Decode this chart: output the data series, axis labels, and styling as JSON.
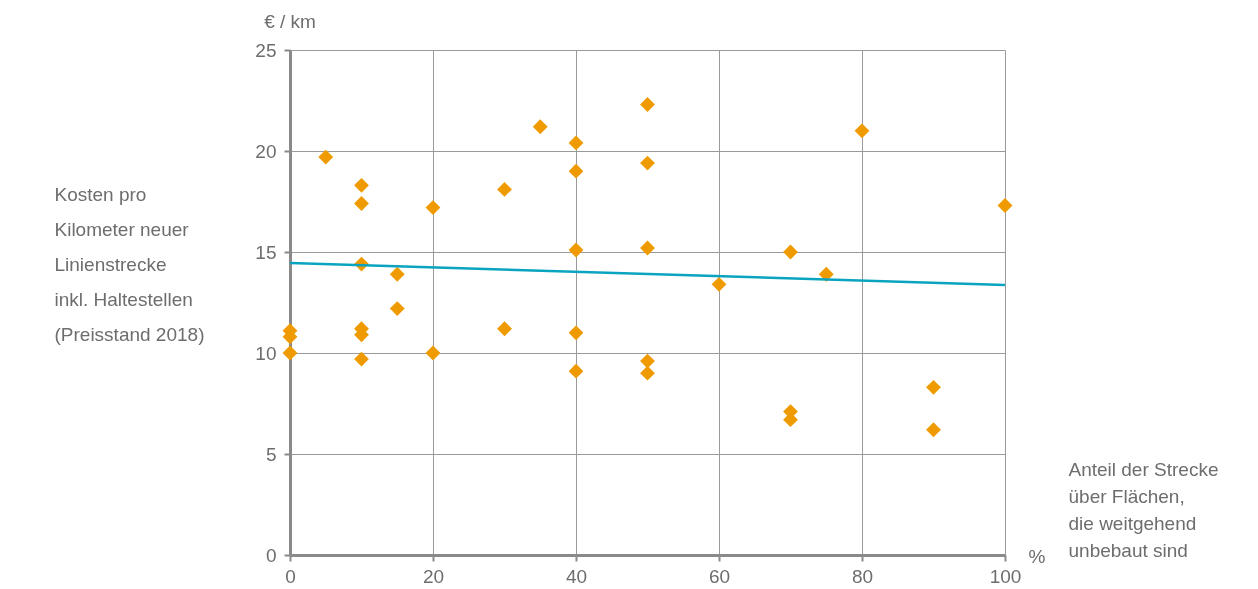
{
  "chart_data": {
    "type": "scatter",
    "ylabel": "Kosten pro\nKilometer neuer\nLinienstrecke\ninkl. Haltestellen\n(Preisstand 2018)",
    "xlabel": "Anteil der Strecke\nüber Flächen,\ndie weitgehend\nunbebaut sind",
    "annotations": [
      "€ / km",
      "%"
    ],
    "xlim": [
      0,
      100
    ],
    "xticks": [
      0,
      20,
      40,
      60,
      80,
      100
    ],
    "ylim": [
      0,
      25
    ],
    "yticks": [
      0,
      5,
      10,
      15,
      20,
      25
    ],
    "grid": true,
    "series": [
      {
        "type": "scatter",
        "marker": "diamond",
        "color": "#ef9b00",
        "x": [
          0,
          0,
          0,
          5,
          10,
          10,
          10,
          10,
          10,
          10,
          15,
          15,
          20,
          20,
          30,
          30,
          35,
          40,
          40,
          40,
          40,
          40,
          50,
          50,
          50,
          50,
          50,
          60,
          70,
          70,
          70,
          75,
          80,
          90,
          90,
          100
        ],
        "values": [
          11.1,
          10.8,
          10.0,
          19.7,
          18.3,
          17.4,
          14.4,
          11.2,
          10.9,
          9.7,
          13.9,
          12.2,
          17.2,
          10.0,
          18.1,
          11.2,
          21.2,
          20.4,
          19.0,
          15.1,
          11.0,
          9.1,
          22.3,
          19.4,
          15.2,
          9.6,
          9.0,
          13.4,
          15.0,
          7.1,
          6.7,
          13.9,
          21.0,
          8.3,
          6.2,
          17.3
        ]
      },
      {
        "type": "line",
        "color": "#0aa4c0",
        "x": [
          0,
          100
        ],
        "values": [
          14.45,
          13.37
        ]
      }
    ]
  }
}
